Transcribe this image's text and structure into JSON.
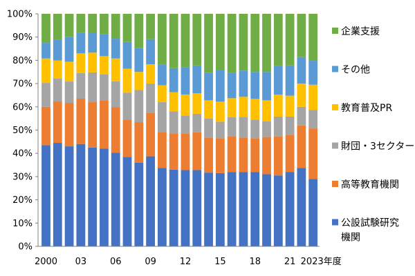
{
  "chart_data": {
    "type": "bar",
    "stacked": true,
    "normalized_percent": true,
    "title": "",
    "xlabel": "",
    "ylabel": "",
    "ylim": [
      0,
      100
    ],
    "yticks": [
      "0%",
      "10%",
      "20%",
      "30%",
      "40%",
      "50%",
      "60%",
      "70%",
      "80%",
      "90%",
      "100%"
    ],
    "grid": false,
    "legend_position": "right",
    "categories": [
      "2000",
      "2001",
      "2002",
      "2003",
      "2004",
      "2005",
      "2006",
      "2007",
      "2008",
      "2009",
      "2010",
      "2011",
      "2012",
      "2013",
      "2014",
      "2015",
      "2016",
      "2017",
      "2018",
      "2019",
      "2020",
      "2021",
      "2022",
      "2023"
    ],
    "x_tick_labels": [
      {
        "index": 0,
        "label": "2000"
      },
      {
        "index": 3,
        "label": "03"
      },
      {
        "index": 6,
        "label": "06"
      },
      {
        "index": 9,
        "label": "09"
      },
      {
        "index": 12,
        "label": "12"
      },
      {
        "index": 15,
        "label": "15"
      },
      {
        "index": 18,
        "label": "18"
      },
      {
        "index": 21,
        "label": "21"
      },
      {
        "index": 23,
        "label": "2023年度"
      }
    ],
    "series": [
      {
        "name": "公設試験研究機関",
        "legend_lines": [
          "公設試験研究",
          "機関"
        ],
        "color": "#4472C4",
        "values": [
          43.5,
          44.5,
          43,
          44,
          42.5,
          42,
          40.3,
          38.5,
          36,
          38.7,
          33.7,
          33,
          32.8,
          32.8,
          31.7,
          31.5,
          32,
          32,
          32,
          31,
          30.5,
          32,
          33.7,
          29
        ]
      },
      {
        "name": "高等教育機関",
        "color": "#ED7D31",
        "values": [
          16.5,
          17.8,
          18.7,
          19.5,
          19.5,
          20.8,
          19.5,
          15.8,
          17.4,
          18.8,
          15.5,
          15.5,
          15.8,
          16.2,
          15,
          15,
          15.4,
          14.7,
          14.5,
          16,
          16.7,
          16,
          18.3,
          21.7
        ]
      },
      {
        "name": "財団・3セクター",
        "color": "#A5A5A5",
        "values": [
          10.3,
          9.8,
          9.2,
          11,
          12.8,
          11.2,
          11.2,
          11.8,
          13.8,
          12.5,
          12.8,
          9.5,
          7.6,
          8,
          8.3,
          7.1,
          8.1,
          9,
          8,
          6.8,
          8.6,
          7.8,
          8,
          8
        ]
      },
      {
        "name": "教育普及PR",
        "color": "#FFC000",
        "values": [
          10.5,
          7.8,
          8.5,
          8.5,
          8.5,
          7.8,
          9.8,
          10.3,
          7.8,
          8.3,
          7.3,
          8.3,
          9.1,
          8.8,
          7.8,
          8.6,
          8.2,
          8.6,
          8.9,
          9,
          9.4,
          9,
          10,
          10.8
        ]
      },
      {
        "name": "その他",
        "color": "#5B9BD5",
        "values": [
          6.7,
          9,
          10.6,
          8.8,
          8.7,
          9.4,
          8.5,
          11.5,
          10.4,
          10.8,
          9,
          10.3,
          11.6,
          12,
          11.9,
          13.6,
          10.9,
          11.3,
          11.6,
          12.2,
          12.5,
          13,
          11.4,
          10.3
        ]
      },
      {
        "name": "企業支援",
        "color": "#70AD47",
        "values": [
          12.5,
          11.1,
          10,
          8.2,
          8,
          8.8,
          10.7,
          12.1,
          14.6,
          10.9,
          21.7,
          23.4,
          23.1,
          22.2,
          25.3,
          24.2,
          25.4,
          24.4,
          25,
          25,
          22.3,
          22.2,
          18.6,
          20.2
        ]
      }
    ]
  }
}
